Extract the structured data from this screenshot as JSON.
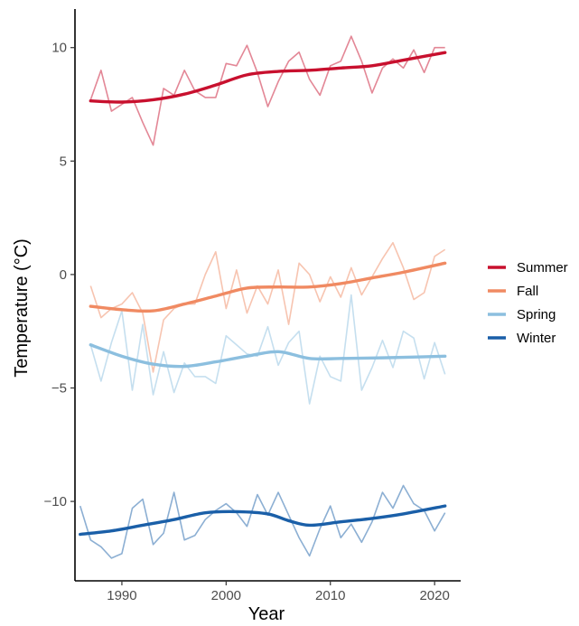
{
  "chart_data": {
    "type": "line",
    "title": "",
    "xlabel": "Year",
    "ylabel": "Temperature (°C)",
    "xlim": [
      1985.5,
      2022.5
    ],
    "ylim": [
      -13.5,
      11.7
    ],
    "x_ticks": [
      1990,
      2000,
      2010,
      2020
    ],
    "y_ticks": [
      -10,
      -5,
      0,
      5,
      10
    ],
    "y_tick_labels": [
      "−10",
      "−5",
      "0",
      "5",
      "10"
    ],
    "grid": false,
    "legend_position": "right",
    "series": [
      {
        "name": "Summer",
        "color": "#c8102e",
        "raw_x": [
          1987,
          1988,
          1989,
          1990,
          1991,
          1992,
          1993,
          1994,
          1995,
          1996,
          1997,
          1998,
          1999,
          2000,
          2001,
          2002,
          2003,
          2004,
          2005,
          2006,
          2007,
          2008,
          2009,
          2010,
          2011,
          2012,
          2013,
          2014,
          2015,
          2016,
          2017,
          2018,
          2019,
          2020,
          2021
        ],
        "raw_y": [
          7.7,
          9.0,
          7.2,
          7.5,
          7.8,
          6.7,
          5.7,
          8.2,
          7.9,
          9.0,
          8.1,
          7.8,
          7.8,
          9.3,
          9.2,
          10.1,
          8.9,
          7.4,
          8.5,
          9.4,
          9.8,
          8.6,
          7.9,
          9.2,
          9.4,
          10.5,
          9.4,
          8.0,
          9.1,
          9.5,
          9.1,
          9.9,
          8.9,
          10.0,
          10.0
        ],
        "smooth_x": [
          1987,
          1990,
          1993,
          1996,
          1999,
          2002,
          2005,
          2008,
          2011,
          2014,
          2017,
          2021
        ],
        "smooth_y": [
          7.65,
          7.6,
          7.7,
          7.95,
          8.35,
          8.8,
          8.95,
          9.0,
          9.1,
          9.2,
          9.45,
          9.78
        ]
      },
      {
        "name": "Fall",
        "color": "#f08a62",
        "raw_x": [
          1987,
          1988,
          1989,
          1990,
          1991,
          1992,
          1993,
          1994,
          1995,
          1996,
          1997,
          1998,
          1999,
          2000,
          2001,
          2002,
          2003,
          2004,
          2005,
          2006,
          2007,
          2008,
          2009,
          2010,
          2011,
          2012,
          2013,
          2014,
          2015,
          2016,
          2017,
          2018,
          2019,
          2020,
          2021
        ],
        "raw_y": [
          -0.5,
          -1.9,
          -1.5,
          -1.3,
          -0.8,
          -1.7,
          -4.3,
          -2.0,
          -1.5,
          -1.3,
          -1.3,
          0.0,
          1.0,
          -1.5,
          0.2,
          -1.7,
          -0.5,
          -1.3,
          0.2,
          -2.2,
          0.5,
          0.0,
          -1.2,
          -0.1,
          -1.0,
          0.3,
          -0.9,
          -0.1,
          0.7,
          1.4,
          0.3,
          -1.1,
          -0.8,
          0.8,
          1.1
        ],
        "smooth_x": [
          1987,
          1990,
          1993,
          1996,
          1999,
          2002,
          2005,
          2008,
          2011,
          2014,
          2017,
          2021
        ],
        "smooth_y": [
          -1.4,
          -1.55,
          -1.6,
          -1.3,
          -0.95,
          -0.6,
          -0.55,
          -0.55,
          -0.4,
          -0.15,
          0.1,
          0.5
        ]
      },
      {
        "name": "Spring",
        "color": "#8cbfdf",
        "raw_x": [
          1987,
          1988,
          1989,
          1990,
          1991,
          1992,
          1993,
          1994,
          1995,
          1996,
          1997,
          1998,
          1999,
          2000,
          2001,
          2002,
          2003,
          2004,
          2005,
          2006,
          2007,
          2008,
          2009,
          2010,
          2011,
          2012,
          2013,
          2014,
          2015,
          2016,
          2017,
          2018,
          2019,
          2020,
          2021
        ],
        "raw_y": [
          -3.1,
          -4.7,
          -3.0,
          -1.6,
          -5.1,
          -2.2,
          -5.3,
          -3.4,
          -5.2,
          -3.9,
          -4.5,
          -4.5,
          -4.8,
          -2.7,
          -3.1,
          -3.5,
          -3.6,
          -2.3,
          -4.0,
          -3.0,
          -2.5,
          -5.7,
          -3.6,
          -4.5,
          -4.7,
          -0.9,
          -5.1,
          -4.1,
          -2.9,
          -4.1,
          -2.5,
          -2.8,
          -4.6,
          -3.0,
          -4.4
        ],
        "smooth_x": [
          1987,
          1990,
          1993,
          1996,
          1999,
          2002,
          2005,
          2008,
          2011,
          2014,
          2017,
          2021
        ],
        "smooth_y": [
          -3.1,
          -3.6,
          -3.95,
          -4.05,
          -3.85,
          -3.6,
          -3.4,
          -3.7,
          -3.7,
          -3.68,
          -3.65,
          -3.6
        ]
      },
      {
        "name": "Winter",
        "color": "#1a5fa8",
        "raw_x": [
          1986,
          1987,
          1988,
          1989,
          1990,
          1991,
          1992,
          1993,
          1994,
          1995,
          1996,
          1997,
          1998,
          1999,
          2000,
          2001,
          2002,
          2003,
          2004,
          2005,
          2006,
          2007,
          2008,
          2009,
          2010,
          2011,
          2012,
          2013,
          2014,
          2015,
          2016,
          2017,
          2018,
          2019,
          2020,
          2021
        ],
        "raw_y": [
          -10.2,
          -11.7,
          -12.0,
          -12.5,
          -12.3,
          -10.3,
          -9.9,
          -11.9,
          -11.4,
          -9.6,
          -11.7,
          -11.5,
          -10.8,
          -10.4,
          -10.1,
          -10.5,
          -11.1,
          -9.7,
          -10.6,
          -9.6,
          -10.6,
          -11.6,
          -12.4,
          -11.2,
          -10.2,
          -11.6,
          -11.0,
          -11.8,
          -10.9,
          -9.6,
          -10.3,
          -9.3,
          -10.1,
          -10.4,
          -11.3,
          -10.5
        ],
        "smooth_x": [
          1986,
          1989,
          1992,
          1995,
          1998,
          2001,
          2004,
          2006,
          2008,
          2011,
          2014,
          2017,
          2021
        ],
        "smooth_y": [
          -11.45,
          -11.3,
          -11.05,
          -10.8,
          -10.5,
          -10.45,
          -10.55,
          -10.85,
          -11.05,
          -10.9,
          -10.75,
          -10.55,
          -10.2
        ]
      }
    ]
  }
}
